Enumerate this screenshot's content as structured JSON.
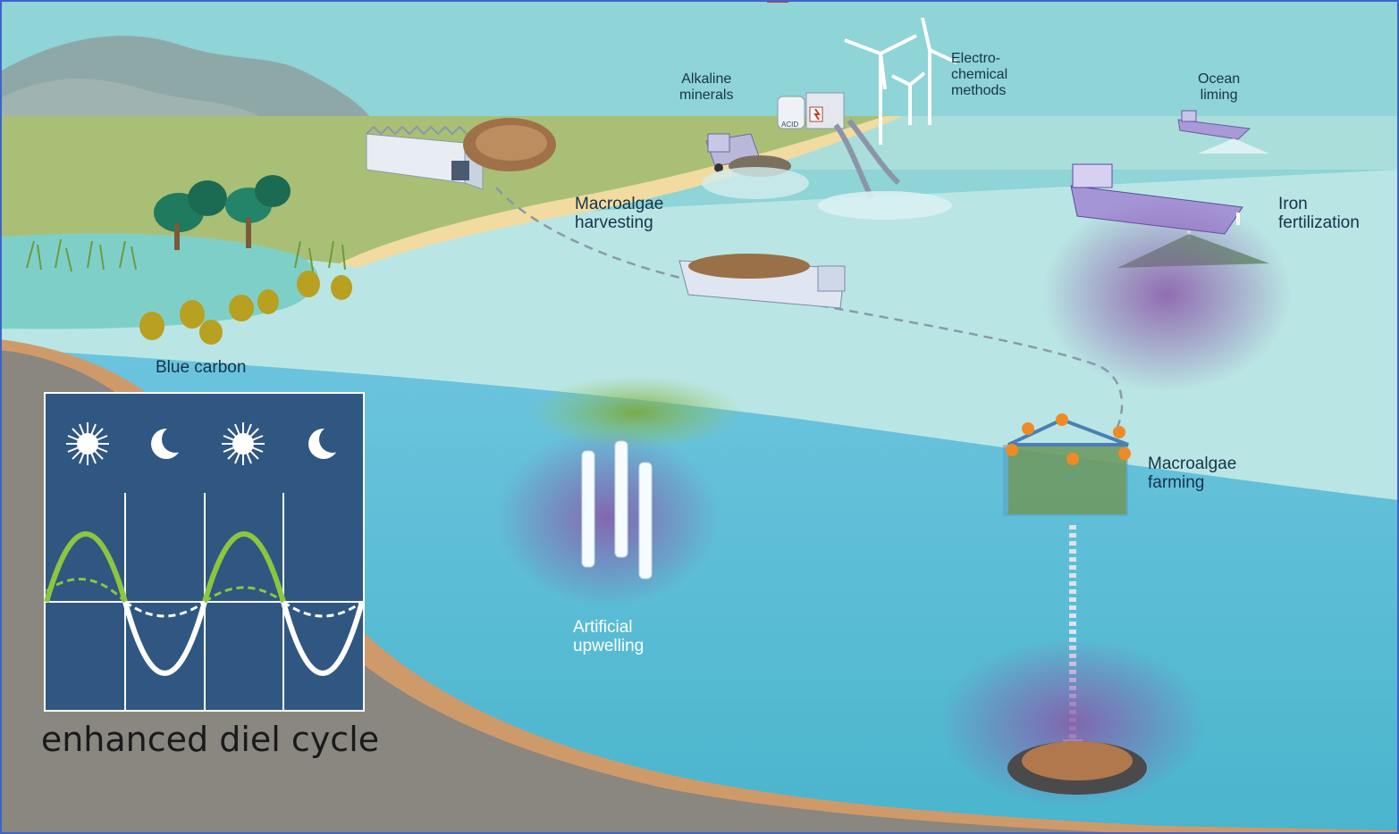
{
  "labels": {
    "alkaline_minerals": "Alkaline\nminerals",
    "electrochemical_methods": "Electro-\nchemical\nmethods",
    "ocean_liming": "Ocean\nliming",
    "macroalgae_harvesting": "Macroalgae\nharvesting",
    "iron_fertilization": "Iron\nfertilization",
    "blue_carbon": "Blue carbon",
    "macroalgae_farming": "Macroalgae\nfarming",
    "artificial_upwelling": "Artificial\nupwelling",
    "acid_tank": "ACID"
  },
  "inset": {
    "caption": "enhanced diel cycle",
    "icons": [
      "sun-icon",
      "moon-icon",
      "sun-icon",
      "moon-icon"
    ]
  },
  "colors": {
    "sky": "#8fd4d6",
    "surface_water": "#b9e6e4",
    "deep_water": "#4fb9d2",
    "sediment": "#8a8680",
    "shore_sand": "#cf9a6a",
    "land": "#a9bf76",
    "inset_background": "#2f5782",
    "daytime_curve": "#8cc63f",
    "nighttime_curve": "#ffffff",
    "plume": "#8a57a8",
    "border": "#3f64c8"
  }
}
